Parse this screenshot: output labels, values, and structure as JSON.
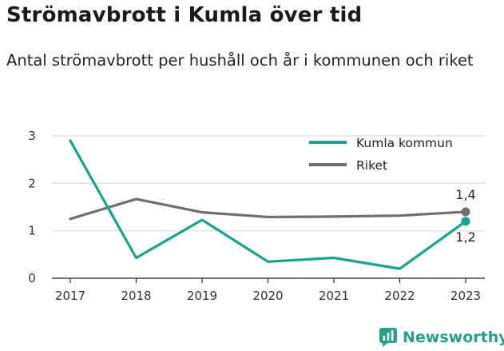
{
  "title": "Strömavbrott i Kumla över tid",
  "subtitle": "Antal strömavbrott per hushåll och år i kommunen och riket",
  "brand": {
    "name": "Newsworthy",
    "icon": "newsworthy-logo-icon",
    "color": "#2a9d8f"
  },
  "chart_data": {
    "type": "line",
    "x": [
      "2017",
      "2018",
      "2019",
      "2020",
      "2021",
      "2022",
      "2023"
    ],
    "yticks": [
      "0",
      "1",
      "2",
      "3"
    ],
    "ylim": [
      0,
      3
    ],
    "grid": true,
    "legend_position": "top-right",
    "series": [
      {
        "name": "Kumla kommun",
        "color": "#16a394",
        "values": [
          2.9,
          0.43,
          1.23,
          0.35,
          0.43,
          0.2,
          1.2
        ],
        "end_label": "1,2"
      },
      {
        "name": "Riket",
        "color": "#6f6f72",
        "values": [
          1.25,
          1.67,
          1.39,
          1.29,
          1.3,
          1.32,
          1.4
        ],
        "end_label": "1,4"
      }
    ]
  }
}
